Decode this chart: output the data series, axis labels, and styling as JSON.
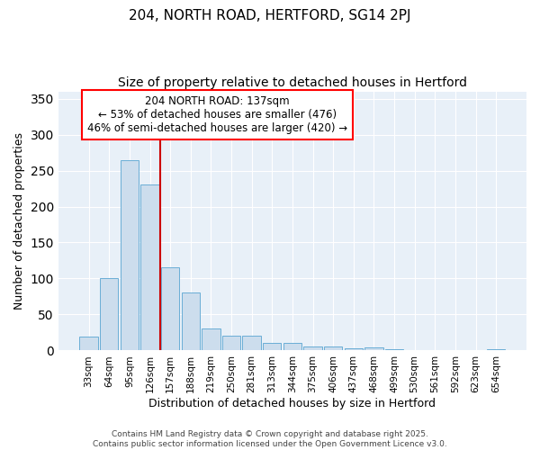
{
  "title1": "204, NORTH ROAD, HERTFORD, SG14 2PJ",
  "title2": "Size of property relative to detached houses in Hertford",
  "xlabel": "Distribution of detached houses by size in Hertford",
  "ylabel": "Number of detached properties",
  "bar_color": "#ccdded",
  "bar_edge_color": "#6aaed6",
  "background_color": "#e8f0f8",
  "categories": [
    "33sqm",
    "64sqm",
    "95sqm",
    "126sqm",
    "157sqm",
    "188sqm",
    "219sqm",
    "250sqm",
    "281sqm",
    "313sqm",
    "344sqm",
    "375sqm",
    "406sqm",
    "437sqm",
    "468sqm",
    "499sqm",
    "530sqm",
    "561sqm",
    "592sqm",
    "623sqm",
    "654sqm"
  ],
  "values": [
    19,
    101,
    265,
    231,
    116,
    81,
    31,
    21,
    21,
    10,
    10,
    5,
    5,
    3,
    4,
    2,
    1,
    0,
    0,
    1,
    2
  ],
  "ylim": [
    0,
    360
  ],
  "yticks": [
    0,
    50,
    100,
    150,
    200,
    250,
    300,
    350
  ],
  "vline_pos": 3.5,
  "vline_color": "#cc0000",
  "annotation_line1": "204 NORTH ROAD: 137sqm",
  "annotation_line2": "← 53% of detached houses are smaller (476)",
  "annotation_line3": "46% of semi-detached houses are larger (420) →",
  "footer1": "Contains HM Land Registry data © Crown copyright and database right 2025.",
  "footer2": "Contains public sector information licensed under the Open Government Licence v3.0.",
  "title1_fontsize": 11,
  "title2_fontsize": 10,
  "ylabel_fontsize": 9,
  "xlabel_fontsize": 9,
  "tick_fontsize": 7.5,
  "footer_fontsize": 6.5,
  "annot_fontsize": 8.5
}
